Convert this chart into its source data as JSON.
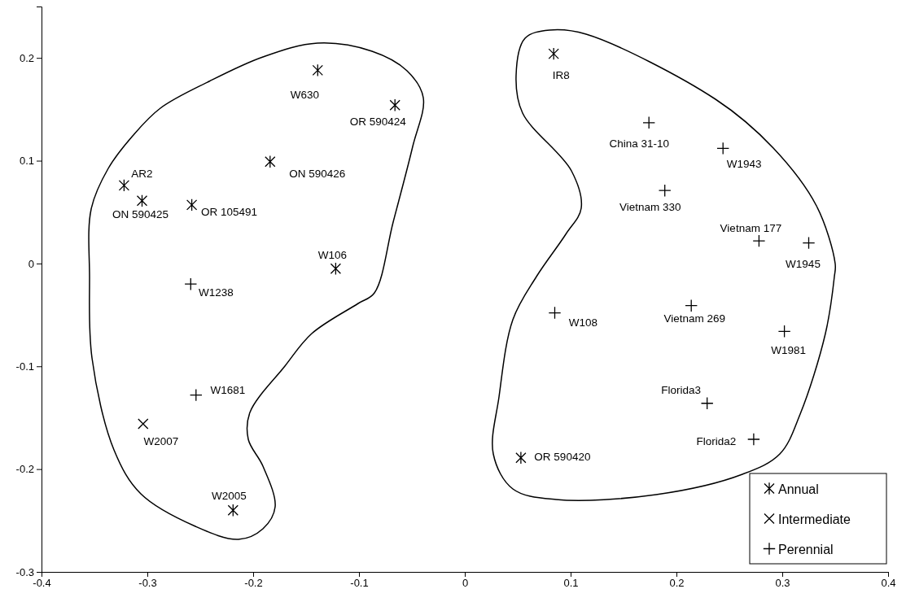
{
  "chart_data": {
    "type": "scatter",
    "xlim": [
      -0.4,
      0.4
    ],
    "xticks": [
      -0.4,
      -0.3,
      -0.2,
      -0.1,
      0,
      0.1,
      0.2,
      0.3,
      0.4
    ],
    "ylim": [
      -0.3,
      0.25
    ],
    "yticks": [
      -0.3,
      -0.2,
      -0.1,
      0,
      0.1,
      0.2
    ],
    "grid": false,
    "legend": "bottom right",
    "series": [
      {
        "name": "Annual",
        "color": "#000000",
        "x": [
          -0.139,
          -0.066,
          -0.184,
          -0.322,
          -0.305,
          -0.258,
          -0.122,
          -0.219,
          0.084,
          0.053
        ],
        "values": [
          0.188,
          0.154,
          0.099,
          0.076,
          0.061,
          0.057,
          -0.005,
          -0.24,
          0.204,
          -0.189
        ],
        "value_labels": [
          "W630",
          "OR 590424",
          "ON 590426",
          "AR2",
          "ON 590425",
          "OR 105491",
          "W106",
          "W2005",
          "IR8",
          "OR 590420"
        ]
      },
      {
        "name": "Intermediate",
        "color": "#000000",
        "marker": "cross",
        "x": [
          -0.304
        ],
        "values": [
          -0.156
        ],
        "value_labels": [
          "W2007"
        ]
      },
      {
        "name": "Perennial",
        "color": "#000000",
        "marker": "plus",
        "x": [
          -0.259,
          -0.254,
          0.174,
          0.244,
          0.189,
          0.278,
          0.325,
          0.085,
          0.214,
          0.302,
          0.229,
          0.273
        ],
        "values": [
          -0.02,
          -0.128,
          0.137,
          0.112,
          0.071,
          0.022,
          0.02,
          -0.048,
          -0.041,
          -0.066,
          -0.136,
          -0.171
        ],
        "value_labels": [
          "W1238",
          "W1681",
          "China 31-10",
          "W1943",
          "Vietnam 330",
          "Vietnam 177",
          "W1945",
          "W108",
          "Vietnam 269",
          "W1981",
          "Florida3",
          "Florida2"
        ]
      }
    ]
  }
}
